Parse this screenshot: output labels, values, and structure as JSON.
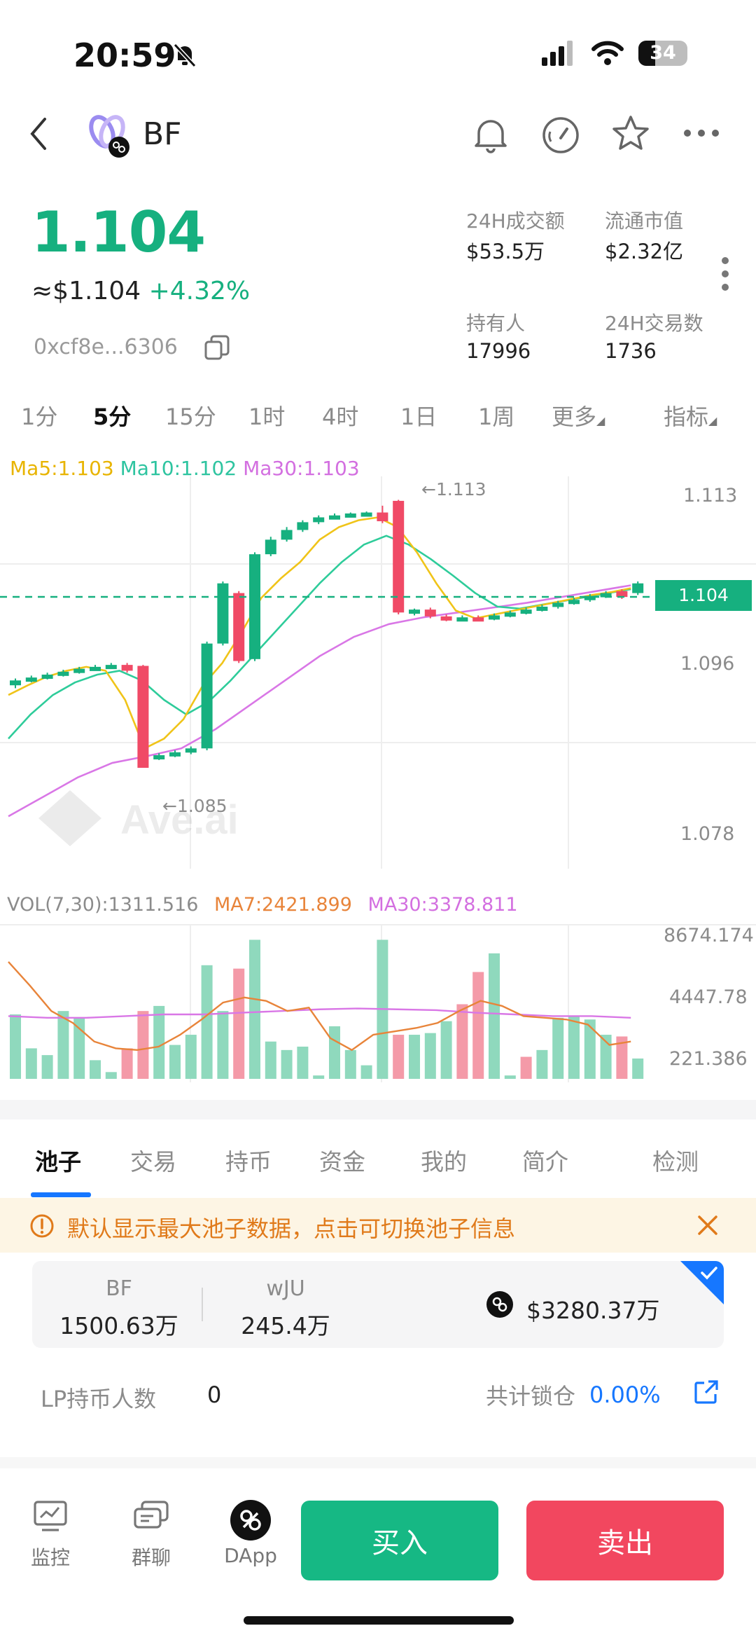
{
  "status_bar": {
    "time": "20:59",
    "battery": "34"
  },
  "header": {
    "token_name": "BF"
  },
  "price": {
    "main": "1.104",
    "usd": "≈$1.104",
    "change": "+4.32%",
    "address": "0xcf8e...6306"
  },
  "stats": [
    {
      "label": "24H成交额",
      "value": "$53.5万"
    },
    {
      "label": "流通市值",
      "value": "$2.32亿"
    },
    {
      "label": "持有人",
      "value": "17996"
    },
    {
      "label": "24H交易数",
      "value": "1736"
    }
  ],
  "timeframes": [
    "1分",
    "5分",
    "15分",
    "1时",
    "4时",
    "1日",
    "1周",
    "更多",
    "指标"
  ],
  "active_timeframe": "5分",
  "chart": {
    "ma_legend": {
      "ma5": "Ma5:1.103",
      "ma10": "Ma10:1.102",
      "ma30": "Ma30:1.103"
    },
    "price_ticks": [
      "1.113",
      "1.096",
      "1.078"
    ],
    "current_price_tag": "1.104",
    "high_marker": "←1.113",
    "low_marker": "←1.085",
    "watermark": "Ave.ai",
    "vol_legend": {
      "vol": "VOL(7,30):1311.516",
      "ma7": "MA7:2421.899",
      "ma30": "MA30:3378.811"
    },
    "vol_ticks": [
      "8674.174",
      "4447.78",
      "221.386"
    ],
    "colors": {
      "up": "#16b07f",
      "down": "#f04a66",
      "ma5": "#f0c419",
      "ma10": "#2ecc9a",
      "ma30": "#d977e6",
      "vol_ma7": "#e8843a"
    }
  },
  "chart_data": {
    "type": "candlestick",
    "candles": [
      {
        "o": 1.0935,
        "c": 1.094,
        "h": 1.0942,
        "l": 1.0932
      },
      {
        "o": 1.094,
        "c": 1.0943,
        "h": 1.0945,
        "l": 1.0938
      },
      {
        "o": 1.0943,
        "c": 1.0946,
        "h": 1.0948,
        "l": 1.0941
      },
      {
        "o": 1.0946,
        "c": 1.0949,
        "h": 1.0951,
        "l": 1.0944
      },
      {
        "o": 1.0949,
        "c": 1.0952,
        "h": 1.0954,
        "l": 1.0947
      },
      {
        "o": 1.0952,
        "c": 1.0954,
        "h": 1.0956,
        "l": 1.095
      },
      {
        "o": 1.0954,
        "c": 1.0956,
        "h": 1.0958,
        "l": 1.0952
      },
      {
        "o": 1.0956,
        "c": 1.095,
        "h": 1.0958,
        "l": 1.0948
      },
      {
        "o": 1.0955,
        "c": 1.085,
        "h": 1.0956,
        "l": 1.085
      },
      {
        "o": 1.086,
        "c": 1.0863,
        "h": 1.0865,
        "l": 1.0858
      },
      {
        "o": 1.0863,
        "c": 1.0866,
        "h": 1.0868,
        "l": 1.0861
      },
      {
        "o": 1.0866,
        "c": 1.087,
        "h": 1.0872,
        "l": 1.0864
      },
      {
        "o": 1.087,
        "c": 1.0978,
        "h": 1.098,
        "l": 1.0868
      },
      {
        "o": 1.0978,
        "c": 1.104,
        "h": 1.1042,
        "l": 1.0976
      },
      {
        "o": 1.103,
        "c": 1.096,
        "h": 1.1032,
        "l": 1.0958
      },
      {
        "o": 1.0962,
        "c": 1.107,
        "h": 1.1072,
        "l": 1.096
      },
      {
        "o": 1.107,
        "c": 1.1085,
        "h": 1.1088,
        "l": 1.1068
      },
      {
        "o": 1.1085,
        "c": 1.1095,
        "h": 1.1098,
        "l": 1.1083
      },
      {
        "o": 1.1095,
        "c": 1.1103,
        "h": 1.1105,
        "l": 1.1093
      },
      {
        "o": 1.1103,
        "c": 1.1108,
        "h": 1.111,
        "l": 1.1101
      },
      {
        "o": 1.1108,
        "c": 1.111,
        "h": 1.1112,
        "l": 1.1106
      },
      {
        "o": 1.111,
        "c": 1.1112,
        "h": 1.1113,
        "l": 1.1109
      },
      {
        "o": 1.1112,
        "c": 1.1113,
        "h": 1.1114,
        "l": 1.1111
      },
      {
        "o": 1.1113,
        "c": 1.1104,
        "h": 1.112,
        "l": 1.1102
      },
      {
        "o": 1.1125,
        "c": 1.101,
        "h": 1.1126,
        "l": 1.1008
      },
      {
        "o": 1.101,
        "c": 1.1013,
        "h": 1.1014,
        "l": 1.1007
      },
      {
        "o": 1.1013,
        "c": 1.1006,
        "h": 1.1015,
        "l": 1.1004
      },
      {
        "o": 1.1006,
        "c": 1.1003,
        "h": 1.1008,
        "l": 1.1001
      },
      {
        "o": 1.1003,
        "c": 1.1005,
        "h": 1.1007,
        "l": 1.1001
      },
      {
        "o": 1.1005,
        "c": 1.1004,
        "h": 1.1007,
        "l": 1.1002
      },
      {
        "o": 1.1004,
        "c": 1.1007,
        "h": 1.1009,
        "l": 1.1002
      },
      {
        "o": 1.1007,
        "c": 1.101,
        "h": 1.1012,
        "l": 1.1005
      },
      {
        "o": 1.101,
        "c": 1.1013,
        "h": 1.1015,
        "l": 1.1008
      },
      {
        "o": 1.1013,
        "c": 1.1016,
        "h": 1.1018,
        "l": 1.1011
      },
      {
        "o": 1.1016,
        "c": 1.102,
        "h": 1.1022,
        "l": 1.1014
      },
      {
        "o": 1.102,
        "c": 1.1023,
        "h": 1.1025,
        "l": 1.1018
      },
      {
        "o": 1.1023,
        "c": 1.1027,
        "h": 1.1029,
        "l": 1.1021
      },
      {
        "o": 1.1027,
        "c": 1.103,
        "h": 1.1032,
        "l": 1.1025
      },
      {
        "o": 1.1032,
        "c": 1.1026,
        "h": 1.1034,
        "l": 1.1024
      },
      {
        "o": 1.103,
        "c": 1.104,
        "h": 1.1042,
        "l": 1.1028
      }
    ],
    "ma5": [
      1.0925,
      1.0935,
      1.0944,
      1.095,
      1.0954,
      1.095,
      1.092,
      1.087,
      1.088,
      1.09,
      1.0935,
      1.0958,
      1.099,
      1.1025,
      1.1045,
      1.1062,
      1.1085,
      1.1098,
      1.1105,
      1.1108,
      1.1098,
      1.1072,
      1.104,
      1.1012,
      1.1004,
      1.1008,
      1.1012,
      1.1016,
      1.102,
      1.1024,
      1.1028,
      1.1031,
      1.1035
    ],
    "ma10": [
      1.088,
      1.0905,
      1.0925,
      1.0938,
      1.0946,
      1.095,
      1.094,
      1.092,
      1.0905,
      1.0918,
      1.094,
      1.0965,
      1.099,
      1.1015,
      1.104,
      1.1062,
      1.108,
      1.1089,
      1.108,
      1.1065,
      1.1048,
      1.103,
      1.1016,
      1.1014,
      1.1018,
      1.1022,
      1.1026,
      1.103,
      1.1034
    ],
    "ma30": [
      1.08,
      1.082,
      1.084,
      1.0855,
      1.0862,
      1.087,
      1.089,
      1.0915,
      1.094,
      1.0965,
      1.0985,
      1.0998,
      1.1005,
      1.101,
      1.1015,
      1.102,
      1.1026,
      1.1032,
      1.1038
    ],
    "volume": [
      {
        "v": 3800,
        "up": true
      },
      {
        "v": 1800,
        "up": true
      },
      {
        "v": 1400,
        "up": true
      },
      {
        "v": 4000,
        "up": true
      },
      {
        "v": 3600,
        "up": true
      },
      {
        "v": 1100,
        "up": true
      },
      {
        "v": 400,
        "up": true
      },
      {
        "v": 1800,
        "up": false
      },
      {
        "v": 4000,
        "up": false
      },
      {
        "v": 4300,
        "up": true
      },
      {
        "v": 2000,
        "up": true
      },
      {
        "v": 2600,
        "up": true
      },
      {
        "v": 6700,
        "up": true
      },
      {
        "v": 4000,
        "up": true
      },
      {
        "v": 6500,
        "up": false
      },
      {
        "v": 8200,
        "up": true
      },
      {
        "v": 2200,
        "up": true
      },
      {
        "v": 1700,
        "up": true
      },
      {
        "v": 1900,
        "up": true
      },
      {
        "v": 200,
        "up": true
      },
      {
        "v": 3100,
        "up": true
      },
      {
        "v": 1700,
        "up": true
      },
      {
        "v": 800,
        "up": true
      },
      {
        "v": 8200,
        "up": true
      },
      {
        "v": 2600,
        "up": false
      },
      {
        "v": 2600,
        "up": true
      },
      {
        "v": 2700,
        "up": true
      },
      {
        "v": 3400,
        "up": true
      },
      {
        "v": 4400,
        "up": false
      },
      {
        "v": 6300,
        "up": false
      },
      {
        "v": 7400,
        "up": true
      },
      {
        "v": 200,
        "up": true
      },
      {
        "v": 1300,
        "up": false
      },
      {
        "v": 1700,
        "up": true
      },
      {
        "v": 3600,
        "up": true
      },
      {
        "v": 3700,
        "up": true
      },
      {
        "v": 3500,
        "up": true
      },
      {
        "v": 2600,
        "up": true
      },
      {
        "v": 2500,
        "up": false
      },
      {
        "v": 1200,
        "up": true
      }
    ],
    "vol_ma7": [
      6900,
      5500,
      4000,
      3300,
      2200,
      1800,
      1700,
      1900,
      2600,
      3500,
      4500,
      4800,
      4600,
      4000,
      4200,
      2400,
      1700,
      2600,
      2800,
      3000,
      3300,
      4000,
      4600,
      4300,
      3700,
      3600,
      3500,
      3200,
      2000,
      2200
    ],
    "vol_ma30": [
      3700,
      3600,
      3600,
      3700,
      3800,
      3800,
      3900,
      4000,
      4100,
      4150,
      4100,
      4050,
      3900,
      3800,
      3700,
      3700,
      3600
    ]
  },
  "tabs": [
    "池子",
    "交易",
    "持币",
    "资金",
    "我的",
    "简介",
    "检测"
  ],
  "active_tab": "池子",
  "notice": {
    "text": "默认显示最大池子数据，点击可切换池子信息"
  },
  "pool": {
    "token1_name": "BF",
    "token1_amount": "1500.63万",
    "token2_name": "wJU",
    "token2_amount": "245.4万",
    "liquidity": "$3280.37万"
  },
  "lp": {
    "label": "LP持币人数",
    "value": "0",
    "locked_label": "共计锁仓",
    "locked_value": "0.00%"
  },
  "bottom_nav": {
    "monitor": "监控",
    "group_chat": "群聊",
    "dapp": "DApp",
    "buy": "买入",
    "sell": "卖出"
  }
}
